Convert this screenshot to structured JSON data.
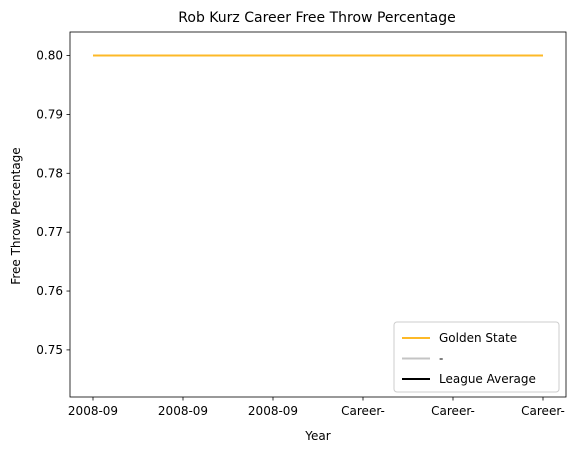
{
  "chart_data": {
    "type": "line",
    "title": "Rob Kurz Career Free Throw Percentage",
    "xlabel": "Year",
    "ylabel": "Free Throw Percentage",
    "categories": [
      "2008-09",
      "2008-09",
      "2008-09",
      "Career-",
      "Career-",
      "Career-"
    ],
    "ylim": [
      0.742,
      0.804
    ],
    "yticks": [
      0.75,
      0.76,
      0.77,
      0.78,
      0.79,
      0.8
    ],
    "ytick_labels": [
      "0.75",
      "0.76",
      "0.77",
      "0.78",
      "0.79",
      "0.80"
    ],
    "grid": false,
    "legend_placement": "bottom-right",
    "series": [
      {
        "name": "Golden State",
        "color": "#FDB927",
        "values": [
          0.8,
          0.8,
          0.8,
          0.8,
          0.8,
          0.8
        ]
      },
      {
        "name": "-",
        "color": "#C4C4C4",
        "values": [
          null,
          null,
          null,
          null,
          null,
          null
        ]
      },
      {
        "name": "League Average",
        "color": "#000000",
        "values": [
          null,
          null,
          null,
          null,
          null,
          null
        ]
      }
    ]
  }
}
